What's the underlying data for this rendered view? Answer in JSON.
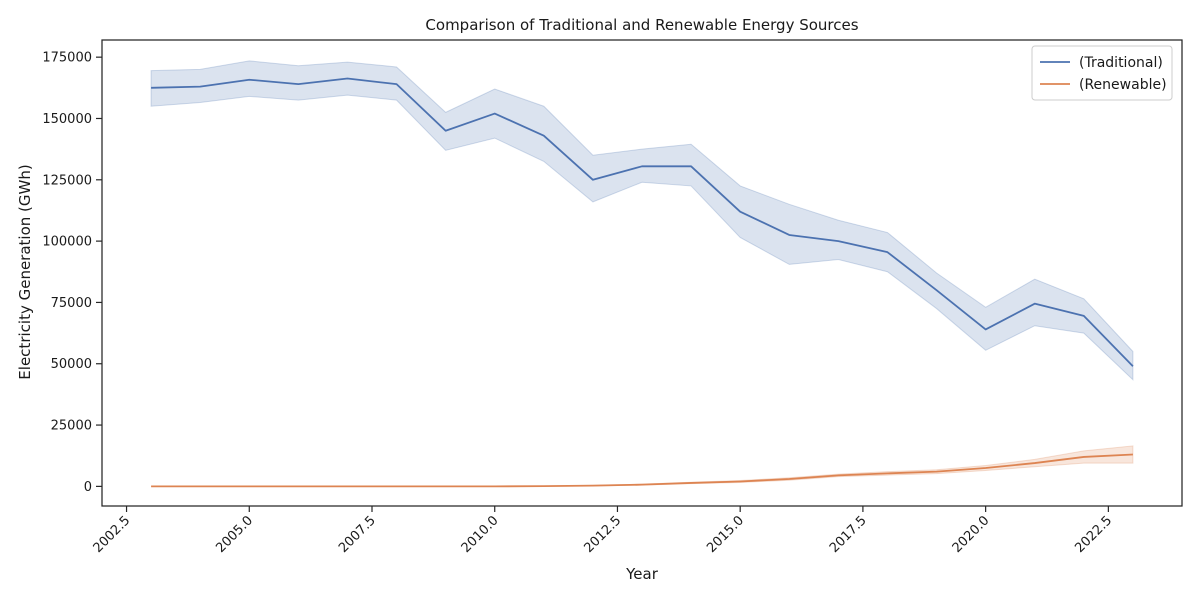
{
  "chart_data": {
    "type": "line",
    "title": "Comparison of Traditional and Renewable Energy Sources",
    "xlabel": "Year",
    "ylabel": "Electricity Generation (GWh)",
    "xlim": [
      2002.0,
      2024.0
    ],
    "ylim": [
      -8000,
      182000
    ],
    "xticks": [
      2002.5,
      2005.0,
      2007.5,
      2010.0,
      2012.5,
      2015.0,
      2017.5,
      2020.0,
      2022.5
    ],
    "xtick_labels": [
      "2002.5",
      "2005.0",
      "2007.5",
      "2010.0",
      "2012.5",
      "2015.0",
      "2017.5",
      "2020.0",
      "2022.5"
    ],
    "yticks": [
      0,
      25000,
      50000,
      75000,
      100000,
      125000,
      150000,
      175000
    ],
    "ytick_labels": [
      "0",
      "25000",
      "50000",
      "75000",
      "100000",
      "125000",
      "150000",
      "175000"
    ],
    "grid": false,
    "legend_position": "top-right",
    "x": [
      2003,
      2004,
      2005,
      2006,
      2007,
      2008,
      2009,
      2010,
      2011,
      2012,
      2013,
      2014,
      2015,
      2016,
      2017,
      2018,
      2019,
      2020,
      2021,
      2022,
      2023
    ],
    "series": [
      {
        "name": "(Traditional)",
        "color": "#4c72b0",
        "values": [
          162500,
          163000,
          165800,
          164000,
          166300,
          164000,
          145000,
          152000,
          143000,
          125000,
          130500,
          130500,
          112000,
          102500,
          100000,
          95500,
          80000,
          64000,
          74500,
          69500,
          49000
        ],
        "upper": [
          169500,
          170000,
          173500,
          171500,
          173000,
          171000,
          152500,
          162000,
          155000,
          135000,
          137500,
          139500,
          122500,
          115000,
          108500,
          103500,
          87000,
          73000,
          84500,
          76500,
          55000
        ],
        "lower": [
          155000,
          156500,
          159000,
          157500,
          159500,
          157500,
          137000,
          142000,
          132500,
          116000,
          124000,
          122500,
          101500,
          90500,
          92500,
          87500,
          72500,
          55500,
          65500,
          62500,
          43500
        ]
      },
      {
        "name": "(Renewable)",
        "color": "#dd8452",
        "values": [
          0,
          0,
          0,
          0,
          0,
          0,
          0,
          0,
          100,
          300,
          700,
          1400,
          2000,
          3000,
          4500,
          5300,
          6000,
          7500,
          9500,
          12000,
          13000
        ],
        "upper": [
          0,
          0,
          0,
          0,
          0,
          0,
          0,
          0,
          150,
          400,
          900,
          1700,
          2400,
          3500,
          5000,
          6000,
          6800,
          8500,
          11000,
          14500,
          16500
        ],
        "lower": [
          0,
          0,
          0,
          0,
          0,
          0,
          0,
          0,
          50,
          200,
          500,
          1100,
          1600,
          2500,
          4000,
          4600,
          5200,
          6500,
          8000,
          9500,
          9500
        ]
      }
    ]
  }
}
